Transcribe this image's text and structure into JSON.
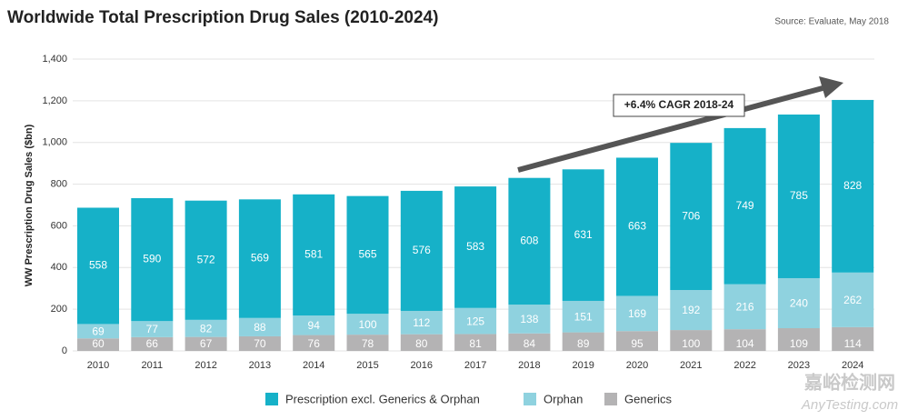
{
  "chart_data": {
    "type": "stacked_bar",
    "title": "Worldwide Total Prescription Drug Sales (2010-2024)",
    "source": "Source: Evaluate, May 2018",
    "y_label": "WW Prescription Drug Sales ($bn)",
    "annotation": "+6.4% CAGR 2018-24",
    "watermark": [
      "嘉峪检测网",
      "AnyTesting.com"
    ],
    "categories": [
      "2010",
      "2011",
      "2012",
      "2013",
      "2014",
      "2015",
      "2016",
      "2017",
      "2018",
      "2019",
      "2020",
      "2021",
      "2022",
      "2023",
      "2024"
    ],
    "series": [
      {
        "name": "Generics",
        "color": "#b4b3b4",
        "values": [
          60,
          66,
          67,
          70,
          76,
          78,
          80,
          81,
          84,
          89,
          95,
          100,
          104,
          109,
          114
        ]
      },
      {
        "name": "Orphan",
        "color": "#8fd2df",
        "values": [
          69,
          77,
          82,
          88,
          94,
          100,
          112,
          125,
          138,
          151,
          169,
          192,
          216,
          240,
          262
        ]
      },
      {
        "name": "Prescription excl. Generics & Orphan",
        "color": "#16b1c8",
        "values": [
          558,
          590,
          572,
          569,
          581,
          565,
          576,
          583,
          608,
          631,
          663,
          706,
          749,
          785,
          828
        ]
      }
    ],
    "legend_order": [
      2,
      1,
      0
    ],
    "ylim": [
      0,
      1400
    ],
    "yticks": [
      0,
      200,
      400,
      600,
      800,
      {
        "value": 1000,
        "label": "1,000"
      },
      {
        "value": 1200,
        "label": "1,200"
      },
      {
        "value": 1400,
        "label": "1,400"
      }
    ],
    "grid": true
  }
}
